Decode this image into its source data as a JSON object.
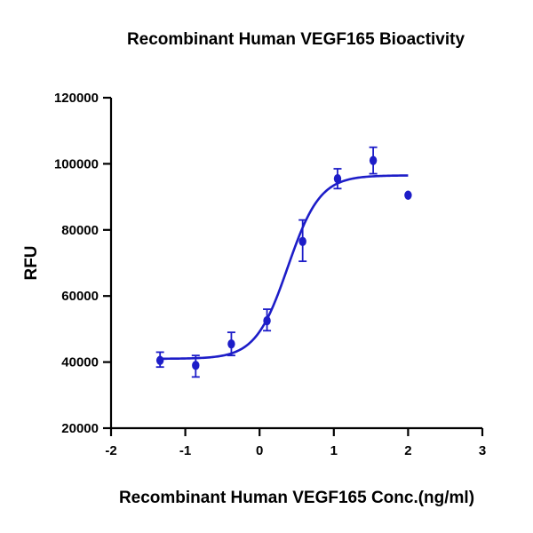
{
  "chart_data": {
    "type": "scatter",
    "title": "Recombinant Human VEGF165 Bioactivity",
    "xlabel": "Recombinant Human VEGF165 Conc.(ng/ml)",
    "ylabel": "RFU",
    "xlim": [
      -2,
      3
    ],
    "ylim": [
      20000,
      120000
    ],
    "xticks": [
      -2,
      -1,
      0,
      1,
      2,
      3
    ],
    "xtick_labels": [
      "-2",
      "-1",
      "0",
      "1",
      "2",
      "3"
    ],
    "yticks": [
      20000,
      40000,
      60000,
      80000,
      100000,
      120000
    ],
    "ytick_labels": [
      "20000",
      "40000",
      "60000",
      "80000",
      "100000",
      "120000"
    ],
    "grid": false,
    "color": "#1d1dc8",
    "series": [
      {
        "name": "Bioactivity",
        "points": [
          {
            "x": -1.34,
            "y": 40500,
            "err_low": 38500,
            "err_high": 43000
          },
          {
            "x": -0.86,
            "y": 39000,
            "err_low": 35500,
            "err_high": 42000
          },
          {
            "x": -0.38,
            "y": 45500,
            "err_low": 42000,
            "err_high": 49000
          },
          {
            "x": 0.1,
            "y": 52500,
            "err_low": 49500,
            "err_high": 56000
          },
          {
            "x": 0.58,
            "y": 76500,
            "err_low": 70500,
            "err_high": 83000
          },
          {
            "x": 1.05,
            "y": 95500,
            "err_low": 92500,
            "err_high": 98500
          },
          {
            "x": 1.53,
            "y": 101000,
            "err_low": 97000,
            "err_high": 105000
          },
          {
            "x": 2.0,
            "y": 90500,
            "err_low": null,
            "err_high": null
          }
        ],
        "fit": {
          "model": "4PL",
          "bottom": 41000,
          "top": 96500,
          "ec50_log": 0.38,
          "hill": 2.0,
          "x_range": [
            -1.34,
            2.0
          ]
        }
      }
    ]
  }
}
